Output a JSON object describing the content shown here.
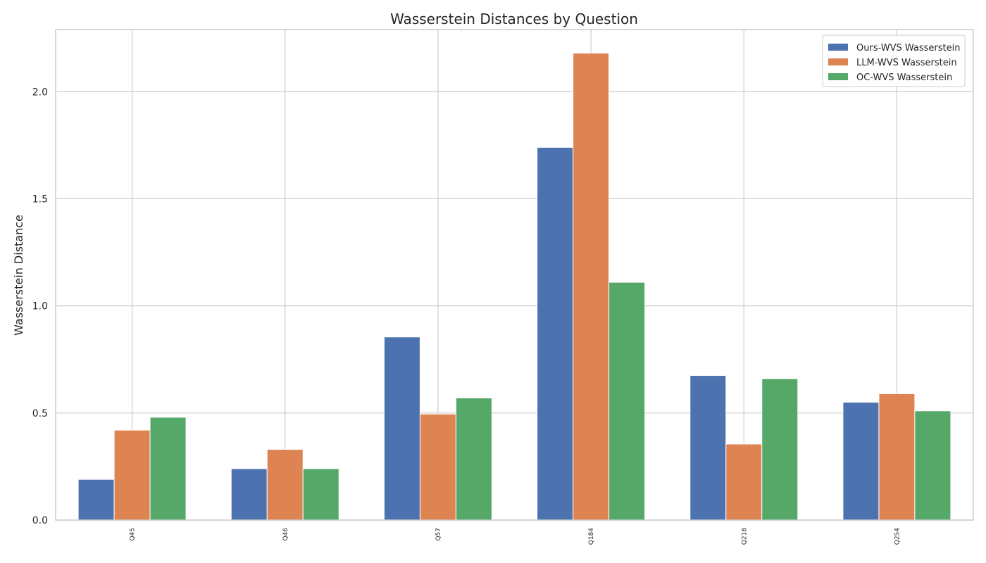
{
  "chart_data": {
    "type": "bar",
    "title": "Wasserstein Distances by Question",
    "xlabel": "",
    "ylabel": "Wasserstein Distance",
    "categories": [
      "Q45",
      "Q46",
      "Q57",
      "Q184",
      "Q218",
      "Q254"
    ],
    "series": [
      {
        "name": "Ours-WVS Wasserstein",
        "color": "#4c72b0",
        "values": [
          0.19,
          0.24,
          0.855,
          1.74,
          0.675,
          0.55
        ]
      },
      {
        "name": "LLM-WVS Wasserstein",
        "color": "#dd8452",
        "values": [
          0.42,
          0.33,
          0.495,
          2.18,
          0.355,
          0.59
        ]
      },
      {
        "name": "OC-WVS Wasserstein",
        "color": "#55a868",
        "values": [
          0.48,
          0.24,
          0.57,
          1.11,
          0.66,
          0.51
        ]
      }
    ],
    "ylim": [
      0,
      2.29
    ],
    "yticks": [
      0.0,
      0.5,
      1.0,
      1.5,
      2.0
    ],
    "ytick_labels": [
      "0.0",
      "0.5",
      "1.0",
      "1.5",
      "2.0"
    ],
    "grid": true,
    "legend_position": "top-right",
    "axes_color": "#cccccc",
    "grid_color": "#cccccc"
  }
}
